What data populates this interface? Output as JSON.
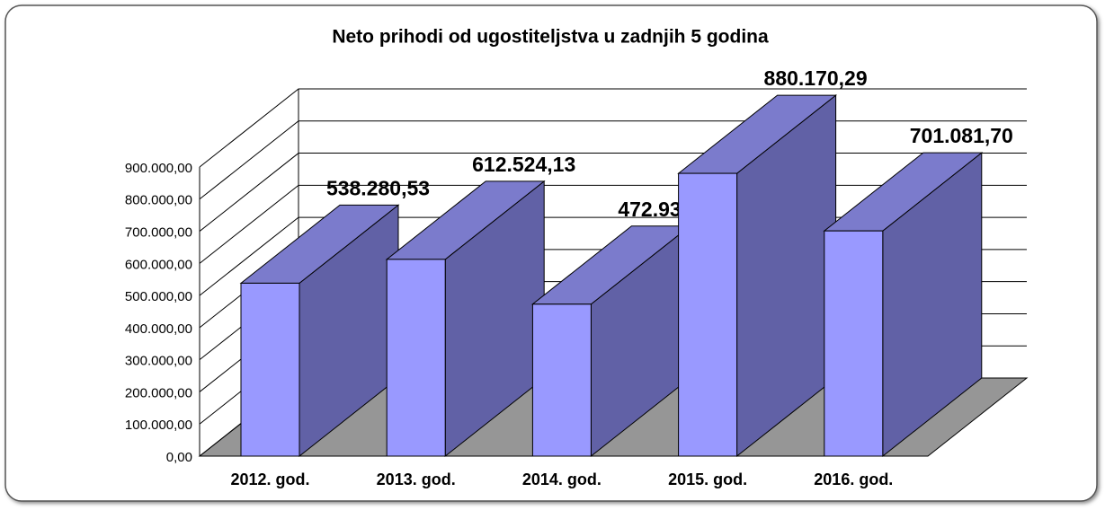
{
  "chart_data": {
    "type": "bar3d",
    "title": "Neto prihodi od ugostiteljstva u zadnjih 5 godina",
    "categories": [
      "2012. god.",
      "2013. god.",
      "2014. god.",
      "2015. god.",
      "2016. god."
    ],
    "values": [
      538280.53,
      612524.13,
      472937.0,
      880170.29,
      701081.7
    ],
    "value_labels": [
      "538.280,53",
      "612.524,13",
      "472.937,00",
      "880.170,29",
      "701.081,70"
    ],
    "color": "#9999ff",
    "ylim": [
      0,
      900000
    ],
    "yticks": [
      {
        "value": 0,
        "label": "0,00"
      },
      {
        "value": 100000,
        "label": "100.000,00"
      },
      {
        "value": 200000,
        "label": "200.000,00"
      },
      {
        "value": 300000,
        "label": "300.000,00"
      },
      {
        "value": 400000,
        "label": "400.000,00"
      },
      {
        "value": 500000,
        "label": "500.000,00"
      },
      {
        "value": 600000,
        "label": "600.000,00"
      },
      {
        "value": 700000,
        "label": "700.000,00"
      },
      {
        "value": 800000,
        "label": "800.000,00"
      },
      {
        "value": 900000,
        "label": "900.000,00"
      }
    ],
    "grid": true
  }
}
